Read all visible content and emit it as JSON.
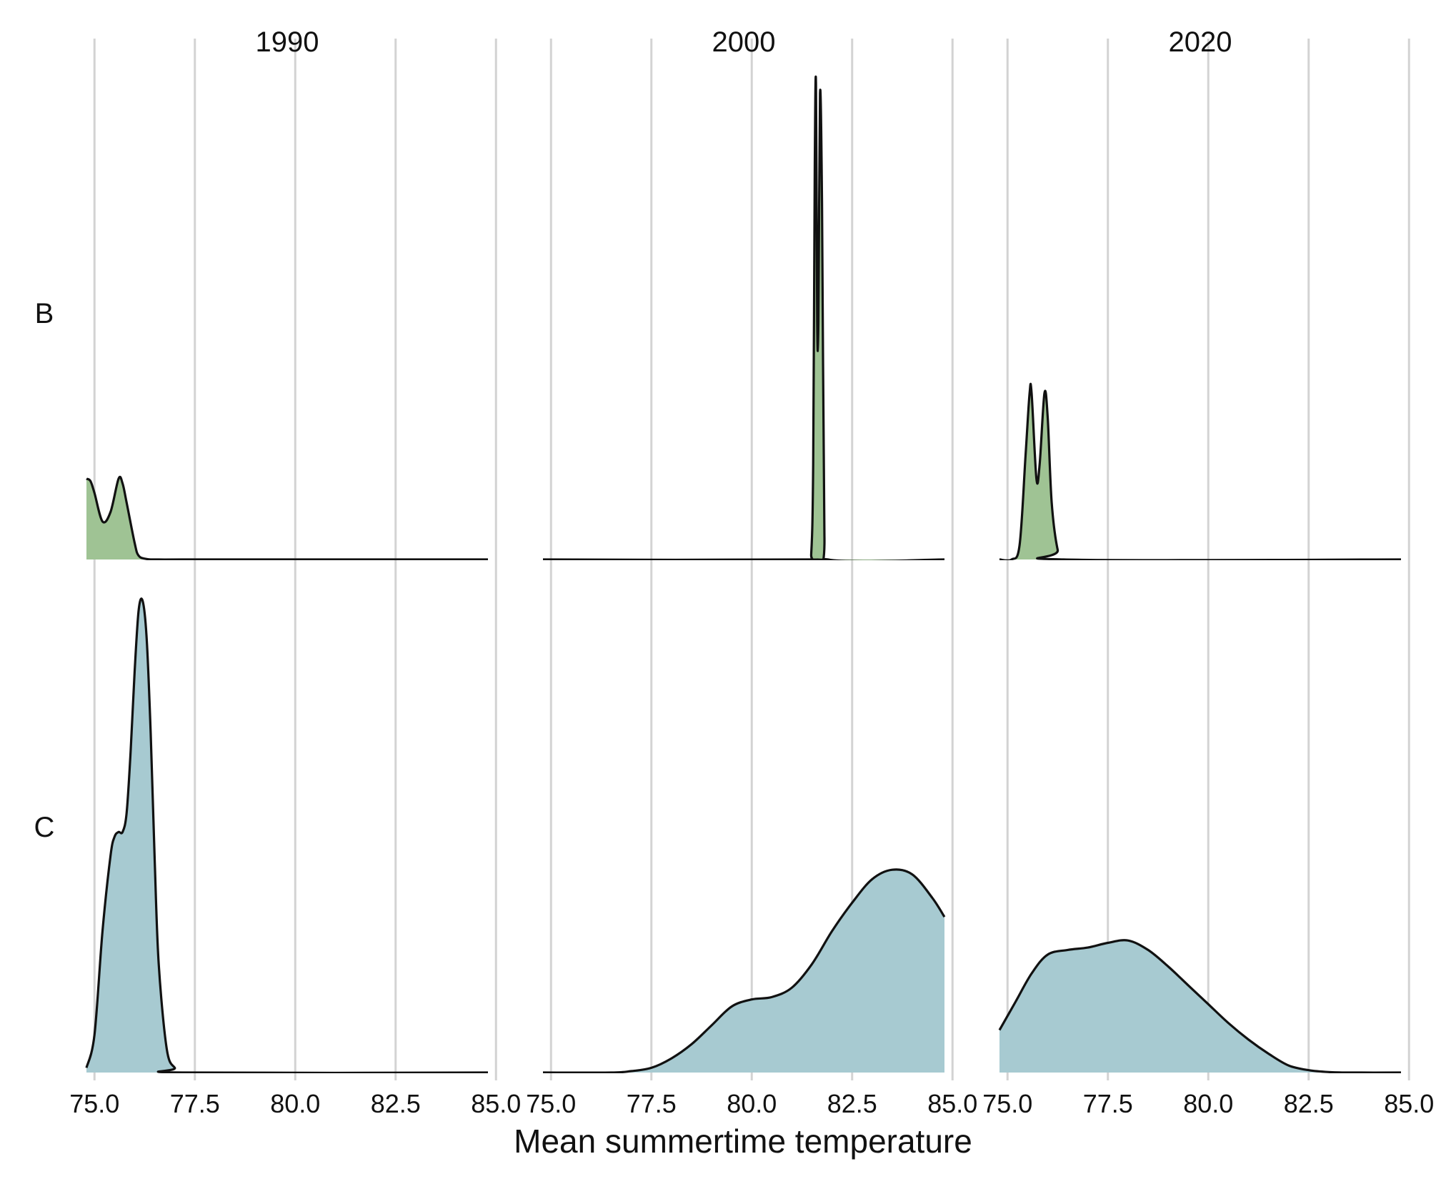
{
  "chart_data": {
    "type": "area",
    "subtype": "faceted density ridgeline",
    "xlabel": "Mean summertime temperature",
    "xlim": [
      74.8,
      84.8
    ],
    "x_ticks": [
      75.0,
      77.5,
      80.0,
      82.5,
      85.0
    ],
    "x_tick_labels": [
      "75.0",
      "77.5",
      "80.0",
      "82.5",
      "85.0"
    ],
    "grid": "vertical lines at major ticks",
    "columns": [
      "1990",
      "2000",
      "2020"
    ],
    "rows": [
      "B",
      "C"
    ],
    "colors": {
      "B": "#9fc394",
      "C": "#a7cad1",
      "outline": "#111111",
      "grid": "#d3d3d3"
    },
    "density_scale_note": "relative height, 1.0 = tallest curve in row",
    "panels": [
      {
        "row": "B",
        "column": "1990",
        "x": [
          74.8,
          74.9,
          75.0,
          75.2,
          75.4,
          75.6,
          75.7,
          75.8,
          76.0,
          76.1,
          76.3,
          76.6,
          78.0,
          84.8
        ],
        "density": [
          0.17,
          0.165,
          0.14,
          0.08,
          0.1,
          0.17,
          0.16,
          0.12,
          0.035,
          0.008,
          0.001,
          0.0,
          0.0,
          0.0
        ]
      },
      {
        "row": "B",
        "column": "2000",
        "x": [
          74.8,
          81.4,
          81.48,
          81.53,
          81.57,
          81.6,
          81.63,
          81.66,
          81.7,
          81.75,
          81.81,
          81.9,
          84.8
        ],
        "density": [
          0.0,
          0.0,
          0.01,
          0.2,
          0.83,
          1.0,
          0.5,
          0.5,
          0.98,
          0.75,
          0.05,
          0.0,
          0.0
        ]
      },
      {
        "row": "B",
        "column": "2020",
        "x": [
          74.8,
          75.1,
          75.3,
          75.45,
          75.55,
          75.6,
          75.72,
          75.8,
          75.92,
          76.0,
          76.1,
          76.25,
          76.4,
          84.8
        ],
        "density": [
          0.0,
          0.0,
          0.03,
          0.22,
          0.35,
          0.35,
          0.17,
          0.2,
          0.35,
          0.3,
          0.12,
          0.02,
          0.0,
          0.0
        ]
      },
      {
        "row": "C",
        "column": "1990",
        "x": [
          74.8,
          75.0,
          75.2,
          75.4,
          75.5,
          75.6,
          75.7,
          75.8,
          75.9,
          76.0,
          76.1,
          76.2,
          76.3,
          76.4,
          76.5,
          76.6,
          76.8,
          77.0,
          77.2,
          84.8
        ],
        "density": [
          0.01,
          0.08,
          0.3,
          0.46,
          0.5,
          0.51,
          0.51,
          0.55,
          0.68,
          0.85,
          0.98,
          1.0,
          0.92,
          0.72,
          0.45,
          0.23,
          0.05,
          0.01,
          0.0,
          0.0
        ]
      },
      {
        "row": "C",
        "column": "2000",
        "x": [
          74.8,
          76.5,
          77.0,
          77.5,
          78.0,
          78.5,
          79.0,
          79.5,
          80.0,
          80.5,
          81.0,
          81.5,
          82.0,
          82.5,
          83.0,
          83.5,
          84.0,
          84.5,
          84.8
        ],
        "density": [
          0.0,
          0.0,
          0.003,
          0.01,
          0.03,
          0.06,
          0.1,
          0.14,
          0.155,
          0.16,
          0.18,
          0.23,
          0.3,
          0.36,
          0.41,
          0.43,
          0.42,
          0.37,
          0.33
        ]
      },
      {
        "row": "C",
        "column": "2020",
        "x": [
          74.8,
          75.2,
          75.6,
          76.0,
          76.5,
          77.0,
          77.5,
          78.0,
          78.5,
          79.0,
          79.5,
          80.0,
          80.5,
          81.0,
          81.5,
          82.0,
          82.5,
          83.0,
          83.5,
          84.8
        ],
        "density": [
          0.09,
          0.15,
          0.21,
          0.25,
          0.26,
          0.265,
          0.275,
          0.28,
          0.26,
          0.225,
          0.185,
          0.145,
          0.105,
          0.07,
          0.04,
          0.015,
          0.005,
          0.001,
          0.0,
          0.0
        ]
      }
    ]
  }
}
